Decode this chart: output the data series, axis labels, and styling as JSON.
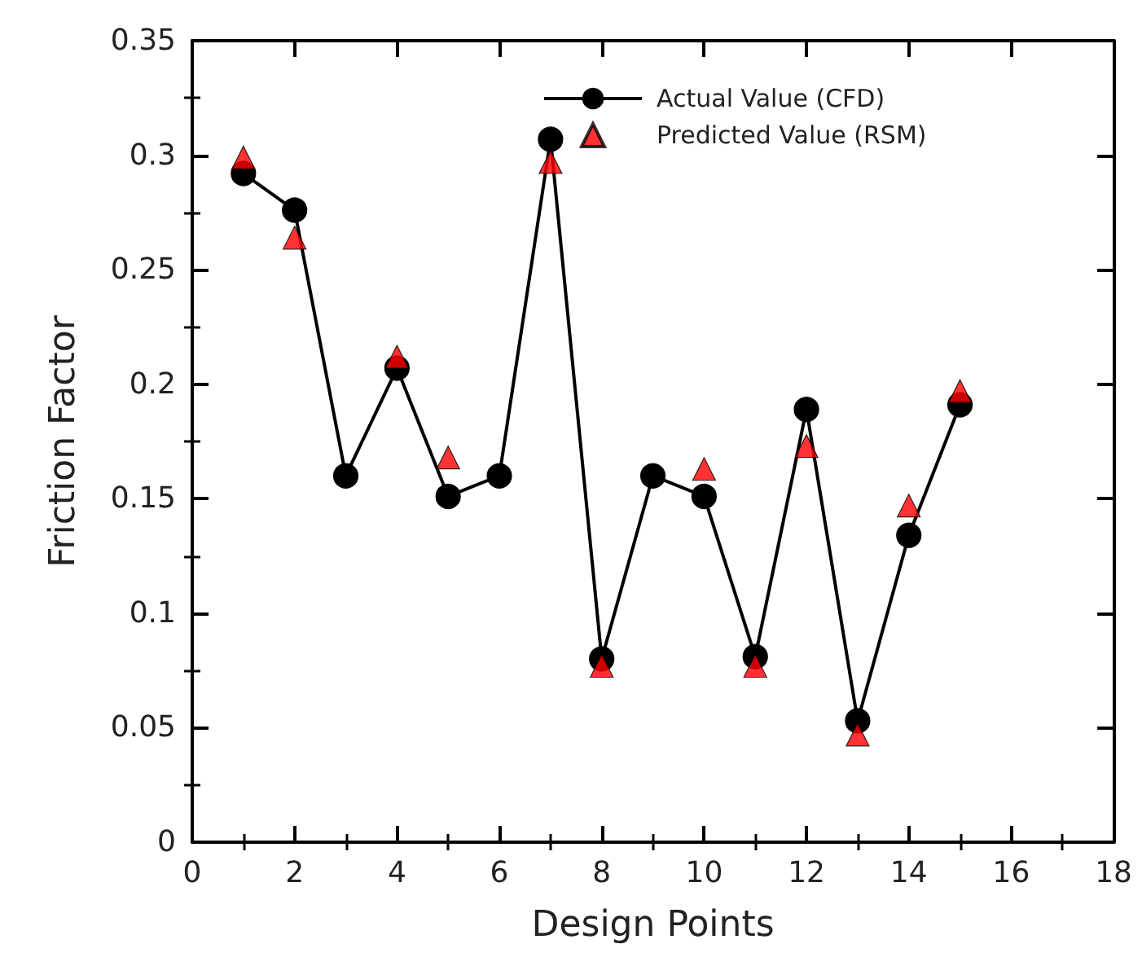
{
  "chart_data": {
    "type": "line",
    "xlabel": "Design Points",
    "ylabel": "Friction Factor",
    "xlim": [
      0,
      18
    ],
    "xticks": [
      0,
      2,
      4,
      6,
      8,
      10,
      12,
      14,
      16,
      18
    ],
    "ylim": [
      0,
      0.35
    ],
    "yticks": [
      0,
      0.05,
      0.1,
      0.15,
      0.2,
      0.25,
      0.3,
      0.35
    ],
    "x": [
      1,
      2,
      3,
      4,
      5,
      6,
      7,
      8,
      9,
      10,
      11,
      12,
      13,
      14,
      15
    ],
    "series": [
      {
        "name": "Actual Value (CFD)",
        "color": "#000000",
        "marker": "circle",
        "line_style": "solid",
        "values": [
          0.292,
          0.276,
          0.16,
          0.207,
          0.151,
          0.16,
          0.307,
          0.08,
          0.16,
          0.151,
          0.081,
          0.189,
          0.053,
          0.134,
          0.191
        ]
      },
      {
        "name": "Predicted Value (RSM)",
        "type": "scatter",
        "color": "#ff0000",
        "marker": "triangle",
        "values": [
          0.299,
          0.264,
          null,
          0.212,
          0.168,
          null,
          0.297,
          0.077,
          null,
          0.163,
          0.077,
          0.173,
          0.047,
          0.147,
          0.197
        ]
      }
    ],
    "grid": false,
    "legend": "top right"
  }
}
